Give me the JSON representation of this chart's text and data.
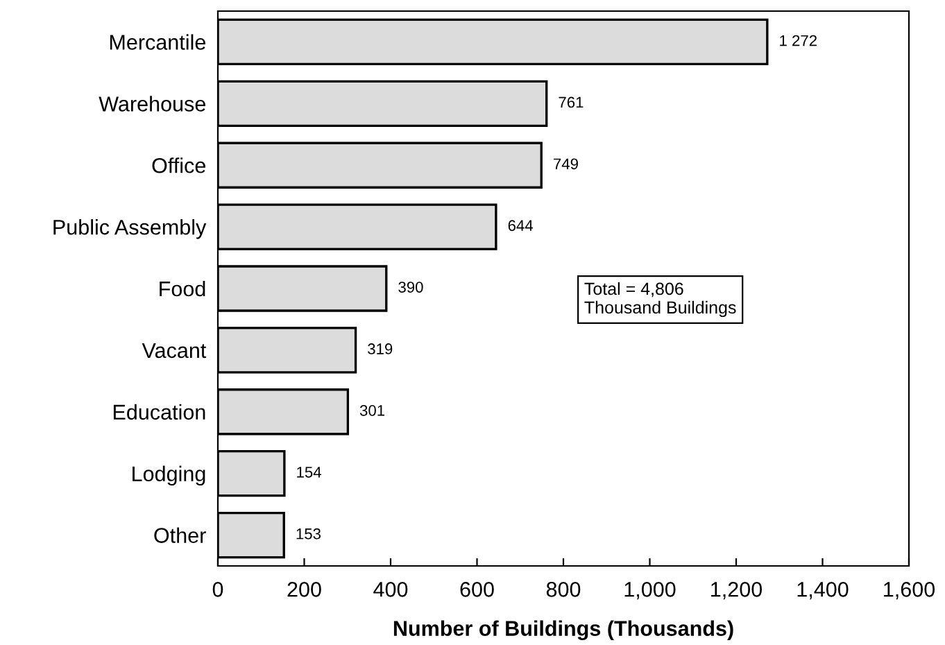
{
  "chart_data": {
    "type": "bar",
    "orientation": "horizontal",
    "categories": [
      "Mercantile",
      "Warehouse",
      "Office",
      "Public Assembly",
      "Food",
      "Vacant",
      "Education",
      "Lodging",
      "Other"
    ],
    "values": [
      1272,
      761,
      749,
      644,
      390,
      319,
      301,
      154,
      153
    ],
    "value_labels": [
      "1 272",
      "761",
      "749",
      "644",
      "390",
      "319",
      "301",
      "154",
      "153"
    ],
    "color": "#dcdcdc",
    "xlim": [
      0,
      1600
    ],
    "xticks": [
      0,
      200,
      400,
      600,
      800,
      {
        "value": 1000,
        "label": "1,000"
      },
      {
        "value": 1200,
        "label": "1,200"
      },
      {
        "value": 1400,
        "label": "1,400"
      },
      {
        "value": 1600,
        "label": "1,600"
      }
    ],
    "xlabel": "Number of Buildings (Thousands)",
    "annotations": [
      "Total = 4,806\nThousand Buildings"
    ],
    "grid": false
  }
}
